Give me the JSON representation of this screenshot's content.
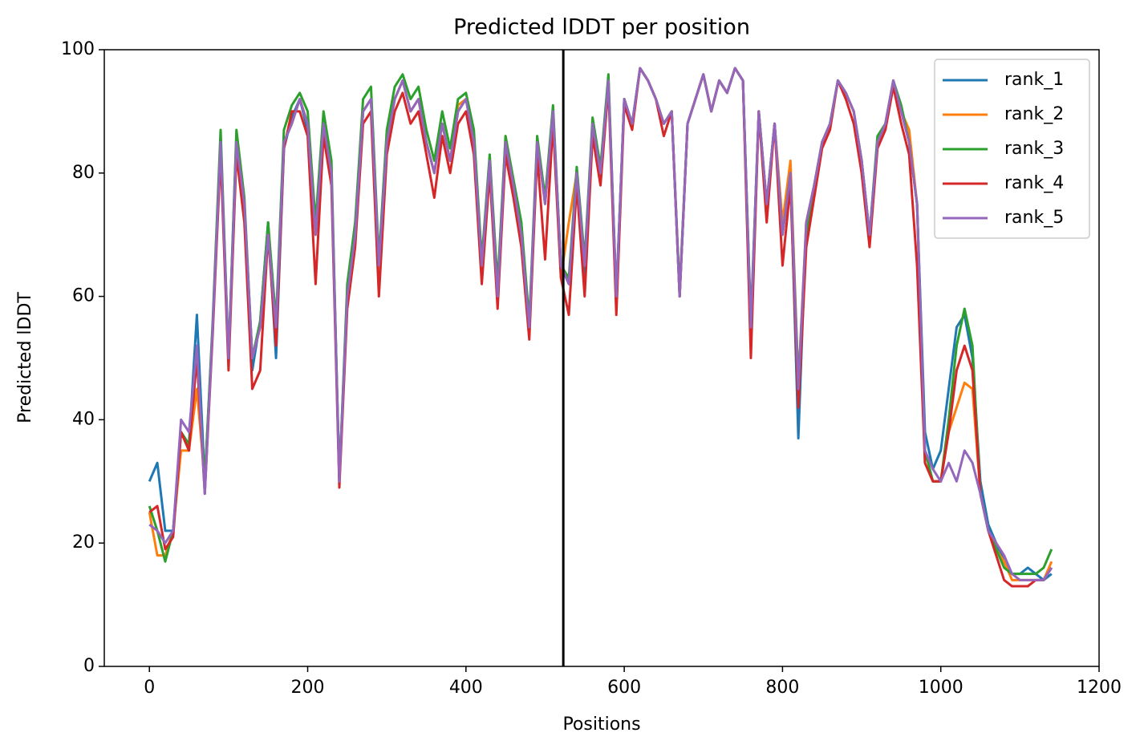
{
  "chart_data": {
    "type": "line",
    "title": "Predicted lDDT per position",
    "xlabel": "Positions",
    "ylabel": "Predicted lDDT",
    "x": [
      0,
      10,
      20,
      30,
      40,
      50,
      60,
      70,
      80,
      90,
      100,
      110,
      120,
      130,
      140,
      150,
      160,
      170,
      180,
      190,
      200,
      210,
      220,
      230,
      240,
      250,
      260,
      270,
      280,
      290,
      300,
      310,
      320,
      330,
      340,
      350,
      360,
      370,
      380,
      390,
      400,
      410,
      420,
      430,
      440,
      450,
      460,
      470,
      480,
      490,
      500,
      510,
      520,
      530,
      540,
      550,
      560,
      570,
      580,
      590,
      600,
      610,
      620,
      630,
      640,
      650,
      660,
      670,
      680,
      690,
      700,
      710,
      720,
      730,
      740,
      750,
      760,
      770,
      780,
      790,
      800,
      810,
      820,
      830,
      840,
      850,
      860,
      870,
      880,
      890,
      900,
      910,
      920,
      930,
      940,
      950,
      960,
      970,
      980,
      990,
      1000,
      1010,
      1020,
      1030,
      1040,
      1050,
      1060,
      1070,
      1080,
      1090,
      1100,
      1110,
      1120,
      1130,
      1140
    ],
    "series": [
      {
        "name": "rank_1",
        "color": "#1f77b4",
        "values": [
          30,
          33,
          22,
          22,
          38,
          36,
          57,
          30,
          55,
          84,
          50,
          86,
          74,
          48,
          56,
          72,
          50,
          84,
          89,
          92,
          87,
          70,
          88,
          80,
          31,
          60,
          70,
          90,
          92,
          62,
          85,
          92,
          95,
          90,
          92,
          85,
          80,
          88,
          82,
          90,
          92,
          85,
          65,
          82,
          60,
          85,
          78,
          70,
          55,
          85,
          75,
          90,
          65,
          62,
          80,
          63,
          88,
          80,
          95,
          60,
          92,
          88,
          97,
          95,
          92,
          88,
          90,
          60,
          88,
          92,
          96,
          90,
          95,
          93,
          97,
          95,
          55,
          90,
          75,
          88,
          70,
          80,
          37,
          72,
          78,
          85,
          88,
          95,
          93,
          90,
          82,
          70,
          85,
          88,
          95,
          90,
          85,
          75,
          38,
          32,
          35,
          45,
          55,
          57,
          50,
          30,
          23,
          20,
          17,
          15,
          15,
          16,
          15,
          14,
          15
        ]
      },
      {
        "name": "rank_2",
        "color": "#ff7f0e",
        "values": [
          25,
          18,
          18,
          22,
          35,
          35,
          45,
          30,
          55,
          85,
          50,
          85,
          75,
          50,
          55,
          70,
          55,
          85,
          88,
          92,
          88,
          70,
          88,
          80,
          30,
          60,
          70,
          90,
          92,
          62,
          85,
          92,
          95,
          90,
          92,
          85,
          80,
          88,
          82,
          91,
          92,
          86,
          65,
          82,
          60,
          86,
          78,
          70,
          55,
          85,
          75,
          90,
          63,
          72,
          80,
          65,
          88,
          80,
          95,
          58,
          92,
          88,
          97,
          95,
          92,
          88,
          90,
          60,
          88,
          92,
          96,
          90,
          95,
          93,
          97,
          95,
          52,
          90,
          75,
          88,
          72,
          82,
          46,
          72,
          78,
          85,
          88,
          95,
          93,
          90,
          82,
          70,
          85,
          88,
          95,
          90,
          87,
          75,
          33,
          30,
          30,
          38,
          42,
          46,
          45,
          28,
          22,
          19,
          17,
          14,
          14,
          14,
          14,
          14,
          17
        ]
      },
      {
        "name": "rank_3",
        "color": "#2ca02c",
        "values": [
          26,
          22,
          17,
          22,
          38,
          36,
          50,
          30,
          56,
          87,
          50,
          87,
          76,
          50,
          56,
          72,
          56,
          87,
          91,
          93,
          90,
          72,
          90,
          82,
          30,
          62,
          72,
          92,
          94,
          66,
          87,
          94,
          96,
          92,
          94,
          87,
          82,
          90,
          84,
          92,
          93,
          87,
          66,
          83,
          62,
          86,
          79,
          72,
          56,
          86,
          76,
          91,
          65,
          63,
          81,
          66,
          89,
          81,
          96,
          60,
          92,
          88,
          97,
          95,
          92,
          88,
          90,
          61,
          88,
          92,
          96,
          90,
          95,
          93,
          97,
          95,
          56,
          90,
          75,
          88,
          70,
          80,
          46,
          70,
          78,
          85,
          88,
          95,
          93,
          90,
          82,
          70,
          86,
          88,
          95,
          91,
          85,
          75,
          35,
          30,
          30,
          40,
          52,
          58,
          52,
          28,
          22,
          19,
          16,
          15,
          15,
          15,
          15,
          16,
          19
        ]
      },
      {
        "name": "rank_4",
        "color": "#d62728",
        "values": [
          25,
          26,
          19,
          21,
          38,
          35,
          50,
          28,
          54,
          83,
          48,
          83,
          72,
          45,
          48,
          70,
          52,
          84,
          90,
          90,
          86,
          62,
          86,
          78,
          29,
          58,
          68,
          88,
          90,
          60,
          83,
          90,
          93,
          88,
          90,
          83,
          76,
          86,
          80,
          88,
          90,
          83,
          62,
          80,
          58,
          83,
          76,
          68,
          53,
          83,
          66,
          88,
          63,
          57,
          78,
          60,
          86,
          78,
          94,
          57,
          91,
          87,
          97,
          95,
          92,
          86,
          90,
          60,
          88,
          92,
          96,
          90,
          95,
          93,
          97,
          95,
          50,
          90,
          72,
          88,
          65,
          78,
          42,
          68,
          76,
          84,
          87,
          95,
          92,
          88,
          80,
          68,
          84,
          87,
          94,
          88,
          83,
          65,
          33,
          30,
          30,
          38,
          48,
          52,
          48,
          28,
          22,
          18,
          14,
          13,
          13,
          13,
          14,
          14,
          16
        ]
      },
      {
        "name": "rank_5",
        "color": "#9467bd",
        "values": [
          23,
          22,
          20,
          22,
          40,
          38,
          52,
          28,
          55,
          85,
          50,
          85,
          75,
          50,
          55,
          70,
          55,
          85,
          88,
          92,
          88,
          70,
          88,
          80,
          30,
          60,
          70,
          90,
          92,
          65,
          85,
          92,
          95,
          90,
          92,
          85,
          80,
          88,
          82,
          90,
          92,
          85,
          65,
          82,
          60,
          85,
          78,
          70,
          55,
          85,
          75,
          90,
          65,
          62,
          80,
          65,
          88,
          80,
          95,
          60,
          92,
          88,
          97,
          95,
          92,
          88,
          90,
          60,
          88,
          92,
          96,
          90,
          95,
          93,
          97,
          95,
          55,
          90,
          75,
          88,
          70,
          80,
          45,
          72,
          78,
          85,
          88,
          95,
          93,
          90,
          82,
          70,
          85,
          88,
          95,
          90,
          85,
          75,
          35,
          32,
          30,
          33,
          30,
          35,
          33,
          28,
          22,
          20,
          18,
          15,
          14,
          14,
          14,
          14,
          16
        ]
      }
    ],
    "vline": {
      "x": 523,
      "color": "#000000"
    },
    "xlim": [
      -57,
      1200
    ],
    "ylim": [
      0,
      100
    ],
    "xticks": [
      0,
      200,
      400,
      600,
      800,
      1000,
      1200
    ],
    "yticks": [
      0,
      20,
      40,
      60,
      80,
      100
    ],
    "grid": false,
    "legend": "upper right"
  }
}
